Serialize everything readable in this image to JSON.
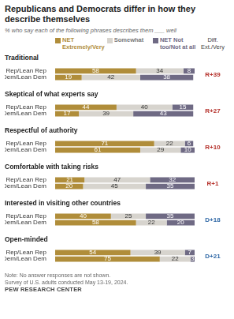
{
  "chart_data": {
    "type": "bar",
    "orientation": "horizontal",
    "stacked": true,
    "data_labels": true,
    "tick_labels": "y",
    "legend": "top",
    "title": "Republicans and Democrats differ in how they describe themselves",
    "subtitle": "% who say each of the following phrases describes them ___ well",
    "groups": [
      "Traditional",
      "Skeptical of what experts say",
      "Respectful of authority",
      "Comfortable with taking risks",
      "Interested in visiting other countries",
      "Open-minded"
    ],
    "categories": [
      "Rep/Lean Rep",
      "Dem/Lean Dem",
      "Rep/Lean Rep",
      "Dem/Lean Dem",
      "Rep/Lean Rep",
      "Dem/Lean Dem",
      "Rep/Lean Rep",
      "Dem/Lean Dem",
      "Rep/Lean Rep",
      "Dem/Lean Dem",
      "Rep/Lean Rep",
      "Dem/Lean Dem"
    ],
    "series": [
      {
        "name": "NET Extremely/Very",
        "color": "#b08d3a",
        "values": [
          58,
          19,
          44,
          17,
          71,
          61,
          21,
          20,
          40,
          58,
          54,
          75
        ]
      },
      {
        "name": "Somewhat",
        "color": "#d7d4ce",
        "values": [
          34,
          42,
          40,
          39,
          22,
          29,
          47,
          45,
          25,
          22,
          39,
          22
        ]
      },
      {
        "name": "NET Not too/Not at all",
        "color": "#6f6a84",
        "values": [
          8,
          38,
          15,
          43,
          6,
          10,
          32,
          35,
          35,
          20,
          7,
          3
        ]
      }
    ],
    "diff_title": "Diff. Ext./Very",
    "diffs": [
      "R+39",
      "R+27",
      "R+10",
      "R+1",
      "D+18",
      "D+21"
    ],
    "xlim": [
      0,
      100
    ],
    "note": "Note: No answer responses are not shown.",
    "source": "Survey of U.S. adults conducted May 13-19, 2024.",
    "credit": "PEW RESEARCH CENTER"
  }
}
